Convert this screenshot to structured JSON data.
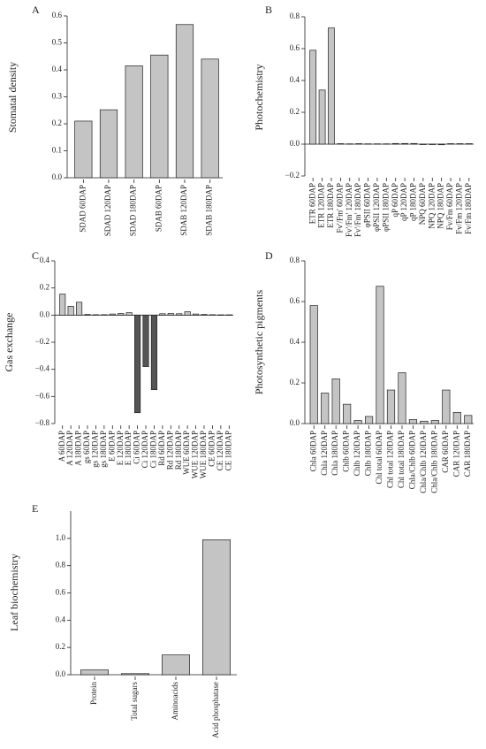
{
  "chart_data": [
    {
      "type": "bar",
      "title": "A",
      "ylabel": "Stomatal density",
      "categories": [
        "SDAD 60DAP",
        "SDAD 120DAP",
        "SDAD 180DAP",
        "SDAB 60DAP",
        "SDAB 120DAP",
        "SDAB 180DAP"
      ],
      "values": [
        0.21,
        0.252,
        0.415,
        0.455,
        0.568,
        0.44
      ],
      "color": "#c4c4c4",
      "ylim": [
        0,
        0.6
      ],
      "yticks": [
        {
          "value": 0,
          "label": "0.0"
        },
        0.1,
        0.2,
        0.3,
        0.4,
        0.5,
        0.6
      ]
    },
    {
      "type": "bar",
      "title": "B",
      "ylabel": "Photochemistry",
      "categories": [
        "ETR 60DAP",
        "ETR 120DAP",
        "ETR 180DAP",
        "Fv'/Fm' 60DAP",
        "Fv'/Fm' 120DAP",
        "Fv'/Fm' 180DAP",
        "φPSII 60DAP",
        "φPSII 120DAP",
        "φPSII 180DAP",
        "qP 60DAP",
        "qP 120DAP",
        "qP 180DAP",
        "NPQ 60DAP",
        "NPQ 120DAP",
        "NPQ 180DAP",
        "Fv/Fm 60DAP",
        "Fv/Fm 120DAP",
        "Fv/Fm 180DAP"
      ],
      "values": [
        0.59,
        0.34,
        0.73,
        0.003,
        0.002,
        0.003,
        0.002,
        0.002,
        0.002,
        0.004,
        0.004,
        0.004,
        -0.003,
        -0.003,
        -0.004,
        0.003,
        0.003,
        0.003
      ],
      "color": "#c4c4c4",
      "ylim": [
        -0.2,
        0.8
      ],
      "yticks": [
        {
          "value": -0.2,
          "label": "−0.2"
        },
        {
          "value": 0,
          "label": "0.0"
        },
        0.2,
        0.4,
        0.6,
        0.8
      ]
    },
    {
      "type": "bar",
      "title": "C",
      "ylabel": "Gas exchange",
      "categories": [
        "A 60DAP",
        "A 120DAP",
        "A 180DAP",
        "gs 60DAP",
        "gs 120DAP",
        "gs 180DAP",
        "E 60DAP",
        "E 120DAP",
        "E 180DAP",
        "Ci 60DAP",
        "Ci 120DAP",
        "Ci 180DAP",
        "Rd 60DAP",
        "Rd 120DAP",
        "Rd 180DAP",
        "WUE 60DAP",
        "WUE 120DAP",
        "WUE 180DAP",
        "CE 60DAP",
        "CE 120DAP",
        "CE 180DAP"
      ],
      "values": [
        0.155,
        0.065,
        0.095,
        0.005,
        0.003,
        0.003,
        0.008,
        0.012,
        0.018,
        -0.72,
        -0.38,
        -0.55,
        0.01,
        0.012,
        0.01,
        0.025,
        0.008,
        0.005,
        0.003,
        0.002,
        0.002
      ],
      "colors": [
        "#c4c4c4",
        "#c4c4c4",
        "#c4c4c4",
        "#c4c4c4",
        "#c4c4c4",
        "#c4c4c4",
        "#c4c4c4",
        "#c4c4c4",
        "#c4c4c4",
        "#555555",
        "#555555",
        "#555555",
        "#c4c4c4",
        "#c4c4c4",
        "#c4c4c4",
        "#c4c4c4",
        "#c4c4c4",
        "#c4c4c4",
        "#c4c4c4",
        "#c4c4c4",
        "#c4c4c4"
      ],
      "ylim": [
        -0.8,
        0.4
      ],
      "yticks": [
        {
          "value": -0.8,
          "label": "−0.8"
        },
        {
          "value": -0.6,
          "label": "−0.6"
        },
        {
          "value": -0.4,
          "label": "−0.4"
        },
        {
          "value": -0.2,
          "label": "−0.2"
        },
        {
          "value": 0,
          "label": "0.0"
        },
        0.2,
        0.4
      ]
    },
    {
      "type": "bar",
      "title": "D",
      "ylabel": "Photosynthetic pigments",
      "categories": [
        "Chla 60DAP",
        "Chla 120DAP",
        "Chla 180DAP",
        "Chlb 60DAP",
        "Chlb 120DAP",
        "Chlb 180DAP",
        "Chl total 60DAP",
        "Chl total 120DAP",
        "Chl total 180DAP",
        "Chla/Chlb 60DAP",
        "Chla/Chlb 120DAP",
        "Chla/Chlb 180DAP",
        "CAR 60DAP",
        "CAR 120DAP",
        "CAR 180DAP"
      ],
      "values": [
        0.58,
        0.15,
        0.22,
        0.095,
        0.015,
        0.035,
        0.675,
        0.165,
        0.25,
        0.02,
        0.012,
        0.015,
        0.165,
        0.055,
        0.04
      ],
      "color": "#c4c4c4",
      "ylim": [
        0,
        0.8
      ],
      "yticks": [
        {
          "value": 0,
          "label": "0.0"
        },
        0.2,
        0.4,
        0.6,
        0.8
      ]
    },
    {
      "type": "bar",
      "title": "E",
      "ylabel": "Leaf biochemistry",
      "categories": [
        "Protein",
        "Total sugars",
        "Aminoacids",
        "Acid phosphatase"
      ],
      "values": [
        0.035,
        0.008,
        0.145,
        0.99
      ],
      "color": "#c4c4c4",
      "ylim": [
        0,
        1.2
      ],
      "yticks": [
        {
          "value": 0,
          "label": "0.0"
        },
        0.2,
        0.4,
        0.6,
        0.8,
        {
          "value": 1,
          "label": "1.0"
        }
      ]
    }
  ]
}
